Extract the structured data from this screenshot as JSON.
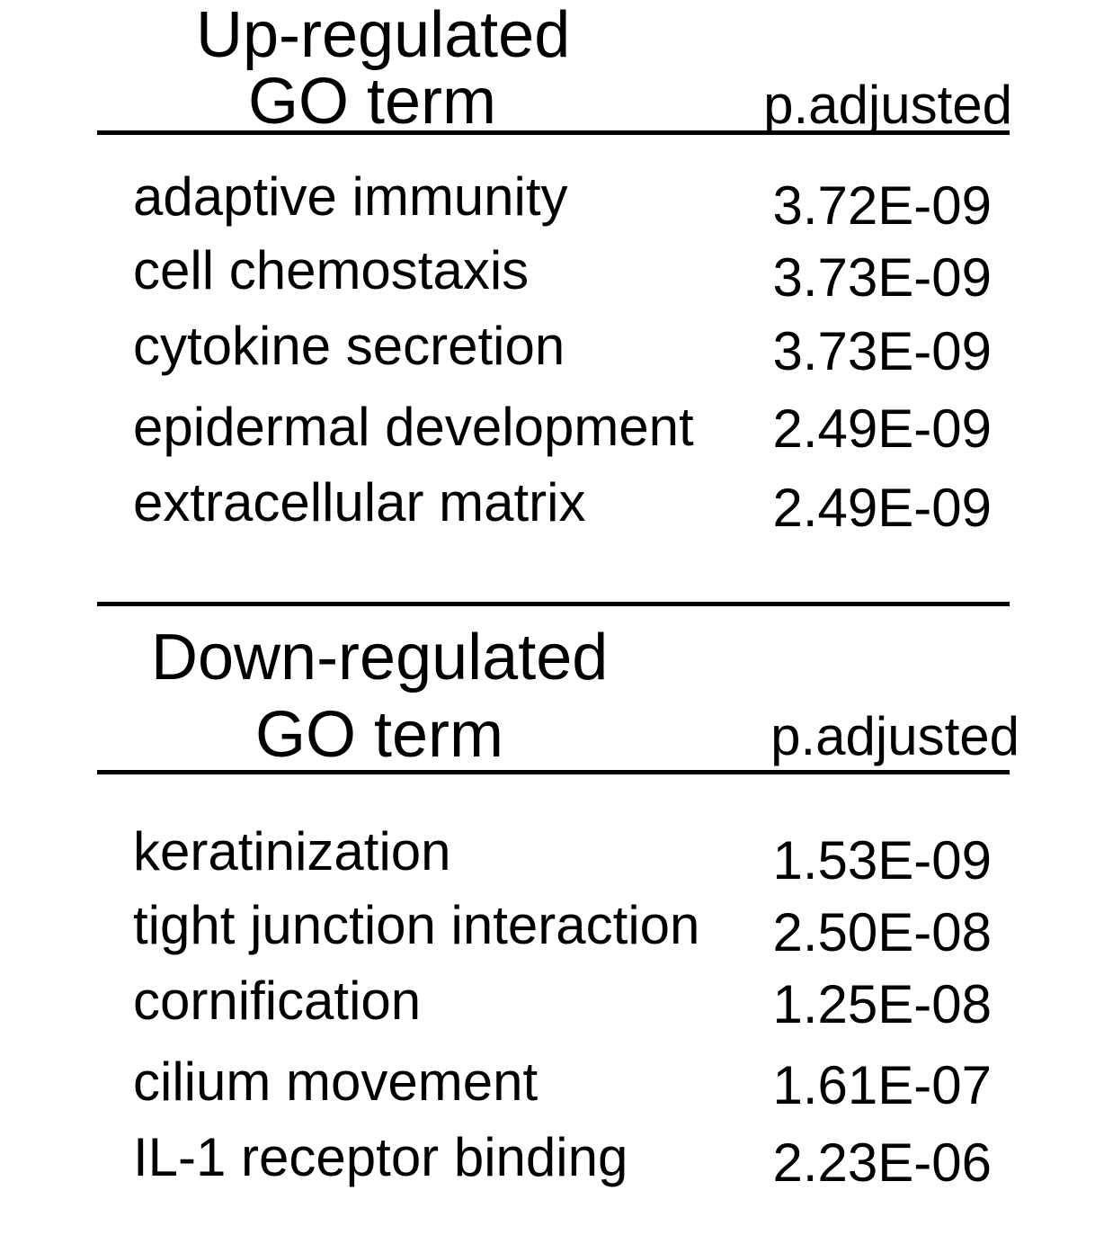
{
  "up": {
    "title_line1": "Up-regulated",
    "title_line2": "GO term",
    "pvalue_header": "p.adjusted",
    "rows": [
      {
        "term": "adaptive immunity",
        "p": "3.72E-09"
      },
      {
        "term": "cell chemostaxis",
        "p": "3.73E-09"
      },
      {
        "term": "cytokine secretion",
        "p": "3.73E-09"
      },
      {
        "term": "epidermal development",
        "p": "2.49E-09"
      },
      {
        "term": "extracellular matrix",
        "p": "2.49E-09"
      }
    ]
  },
  "down": {
    "title_line1": "Down-regulated",
    "title_line2": "GO term",
    "pvalue_header": "p.adjusted",
    "rows": [
      {
        "term": "keratinization",
        "p": "1.53E-09"
      },
      {
        "term": "tight junction interaction",
        "p": "2.50E-08"
      },
      {
        "term": "cornification",
        "p": "1.25E-08"
      },
      {
        "term": "cilium movement",
        "p": "1.61E-07"
      },
      {
        "term": "IL-1 receptor binding",
        "p": "2.23E-06"
      }
    ]
  }
}
